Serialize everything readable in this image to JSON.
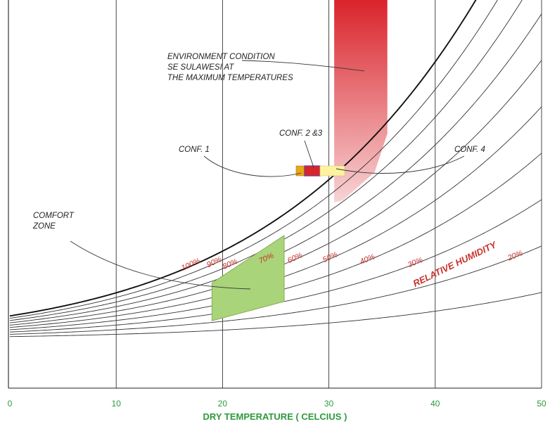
{
  "chart_data": {
    "type": "psychrometric",
    "xlabel": "DRY TEMPERATURE ( CELCIUS  )",
    "xlim": [
      0,
      50
    ],
    "xticks": [
      0,
      10,
      20,
      30,
      40,
      50
    ],
    "grid_vertical": true,
    "relative_humidity_title": "RELATIVE HUMIDITY",
    "relative_humidity_curves": [
      {
        "rh": 100,
        "label": "100%"
      },
      {
        "rh": 90,
        "label": "90%"
      },
      {
        "rh": 80,
        "label": "80%"
      },
      {
        "rh": 70,
        "label": "70%"
      },
      {
        "rh": 60,
        "label": "60%"
      },
      {
        "rh": 50,
        "label": "50%"
      },
      {
        "rh": 40,
        "label": "40%"
      },
      {
        "rh": 30,
        "label": "30%"
      },
      {
        "rh": 20,
        "label": "20%"
      },
      {
        "rh": 10,
        "label": ""
      }
    ],
    "regions": {
      "comfort_zone": {
        "label": [
          "COMFORT",
          "ZONE"
        ],
        "color": "#a9d47a",
        "t_range": [
          19,
          25.8
        ],
        "rh_range": [
          35,
          80
        ]
      },
      "environment_condition": {
        "label": [
          "ENVIRONMENT CONDITION",
          "SE SULAWESI AT",
          "THE MAXIMUM TEMPERATURES"
        ],
        "color_top": "#d9242a",
        "color_bottom": "#f8d4d6",
        "t_range": [
          30.5,
          35.5
        ],
        "rh_top": 100
      },
      "conf_1": {
        "label": "CONF. 1",
        "color": "#e8a817",
        "t": 27,
        "rh": 70
      },
      "conf_2_3": {
        "label": "CONF. 2 &3",
        "color": "#d9242a",
        "border": "#7a3c8a",
        "t": 28,
        "rh": 67
      },
      "conf_4": {
        "label": "CONF. 4",
        "color": "#fdf2a0",
        "t": 30,
        "rh": 60
      }
    }
  }
}
